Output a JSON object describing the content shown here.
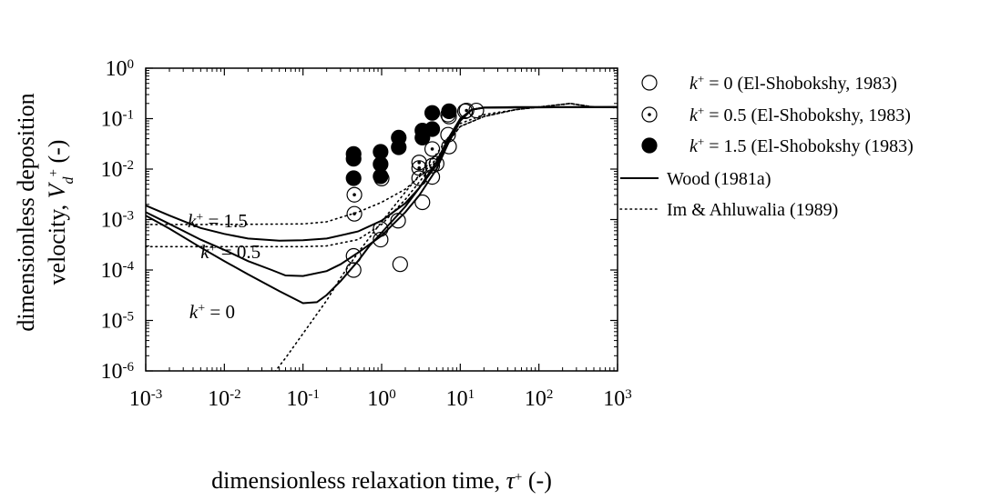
{
  "chart_data": {
    "type": "scatter",
    "xscale": "log",
    "yscale": "log",
    "xlim": [
      0.001,
      1000
    ],
    "ylim": [
      1e-06,
      1
    ],
    "grid": false,
    "legend_position": "right",
    "x_ticks": [
      {
        "base": "10",
        "exp": "-3",
        "value": 0.001
      },
      {
        "base": "10",
        "exp": "-2",
        "value": 0.01
      },
      {
        "base": "10",
        "exp": "-1",
        "value": 0.1
      },
      {
        "base": "10",
        "exp": "0",
        "value": 1
      },
      {
        "base": "10",
        "exp": "1",
        "value": 10
      },
      {
        "base": "10",
        "exp": "2",
        "value": 100
      },
      {
        "base": "10",
        "exp": "3",
        "value": 1000
      }
    ],
    "y_ticks": [
      {
        "base": "10",
        "exp": "-6",
        "value": 1e-06
      },
      {
        "base": "10",
        "exp": "-5",
        "value": 1e-05
      },
      {
        "base": "10",
        "exp": "-4",
        "value": 0.0001
      },
      {
        "base": "10",
        "exp": "-3",
        "value": 0.001
      },
      {
        "base": "10",
        "exp": "-2",
        "value": 0.01
      },
      {
        "base": "10",
        "exp": "-1",
        "value": 0.1
      },
      {
        "base": "10",
        "exp": "0",
        "value": 1
      }
    ],
    "xlabel": {
      "main": "dimensionless relaxation time, ",
      "symbol": "τ",
      "sup": "+",
      "unit": " (-)"
    },
    "ylabel": {
      "line1": "dimensionless deposition",
      "line2_main": "velocity, ",
      "symbol": "V",
      "sub": "d",
      "sup": "+",
      "unit": " (-)"
    },
    "series": [
      {
        "name": "k+ = 0 (El-Shobokshy, 1983)",
        "legend": {
          "symbol": "k",
          "sup": "+",
          "rest": " = 0 (El-Shobokshy, 1983)"
        },
        "marker": "open-circle",
        "points": [
          [
            0.44,
            0.0001
          ],
          [
            0.44,
            0.00019
          ],
          [
            0.97,
            0.0004
          ],
          [
            0.97,
            0.00065
          ],
          [
            1.62,
            0.00095
          ],
          [
            1.72,
            0.00013
          ],
          [
            3.3,
            0.0022
          ],
          [
            3.0,
            0.0066
          ],
          [
            4.4,
            0.007
          ],
          [
            4.4,
            0.0117
          ],
          [
            5.0,
            0.0128
          ],
          [
            7.2,
            0.028
          ],
          [
            7.0,
            0.048
          ],
          [
            7.2,
            0.11
          ],
          [
            11.5,
            0.14
          ],
          [
            16,
            0.145
          ]
        ]
      },
      {
        "name": "k+ = 0.5 (El-Shobokshy, 1983)",
        "legend": {
          "symbol": "k",
          "sup": "+",
          "rest": " = 0.5 (El-Shobokshy, 1983)"
        },
        "marker": "dotted-circle",
        "points": [
          [
            0.45,
            0.0013
          ],
          [
            0.45,
            0.0031
          ],
          [
            1.0,
            0.0065
          ],
          [
            3.0,
            0.0105
          ],
          [
            3.0,
            0.0135
          ],
          [
            4.4,
            0.025
          ],
          [
            7.0,
            0.12
          ],
          [
            12,
            0.145
          ]
        ]
      },
      {
        "name": "k+ = 1.5 (El-Shobokshy (1983)",
        "legend": {
          "symbol": "k",
          "sup": "+",
          "rest": " = 1.5 (El-Shobokshy (1983)"
        },
        "marker": "filled-circle",
        "points": [
          [
            0.44,
            0.0066
          ],
          [
            0.44,
            0.016
          ],
          [
            0.44,
            0.02
          ],
          [
            0.97,
            0.0072
          ],
          [
            0.97,
            0.0125
          ],
          [
            0.97,
            0.022
          ],
          [
            1.65,
            0.027
          ],
          [
            1.65,
            0.042
          ],
          [
            3.3,
            0.042
          ],
          [
            3.3,
            0.058
          ],
          [
            4.4,
            0.062
          ],
          [
            4.4,
            0.13
          ],
          [
            7.2,
            0.14
          ]
        ]
      },
      {
        "name": "Wood (1981a)",
        "legend": {
          "rest": "Wood (1981a)"
        },
        "line": "solid",
        "curves": [
          {
            "label": "k+ = 0",
            "points": [
              [
                0.001,
                0.0012
              ],
              [
                0.002,
                0.00066
              ],
              [
                0.005,
                0.00028
              ],
              [
                0.01,
                0.00015
              ],
              [
                0.02,
                8.2e-05
              ],
              [
                0.05,
                3.8e-05
              ],
              [
                0.1,
                2.2e-05
              ],
              [
                0.15,
                2.3e-05
              ],
              [
                0.2,
                3.2e-05
              ],
              [
                0.3,
                6e-05
              ],
              [
                0.5,
                0.00015
              ],
              [
                0.7,
                0.0003
              ],
              [
                1,
                0.00055
              ],
              [
                1.5,
                0.0011
              ],
              [
                2,
                0.0018
              ],
              [
                3,
                0.0042
              ],
              [
                5,
                0.014
              ],
              [
                7,
                0.04
              ],
              [
                10,
                0.1
              ],
              [
                14,
                0.15
              ],
              [
                20,
                0.165
              ],
              [
                50,
                0.17
              ],
              [
                1000,
                0.17
              ]
            ]
          },
          {
            "label": "k+ = 0.5",
            "points": [
              [
                0.001,
                0.0014
              ],
              [
                0.002,
                0.00082
              ],
              [
                0.005,
                0.0004
              ],
              [
                0.01,
                0.00025
              ],
              [
                0.02,
                0.00015
              ],
              [
                0.04,
                0.0001
              ],
              [
                0.06,
                7.8e-05
              ],
              [
                0.1,
                7.6e-05
              ],
              [
                0.2,
                9.5e-05
              ],
              [
                0.3,
                0.00013
              ],
              [
                0.5,
                0.00022
              ],
              [
                1,
                0.00048
              ],
              [
                2,
                0.0014
              ],
              [
                3,
                0.003
              ],
              [
                5,
                0.01
              ],
              [
                7,
                0.032
              ],
              [
                10,
                0.09
              ],
              [
                14,
                0.15
              ],
              [
                20,
                0.165
              ],
              [
                1000,
                0.17
              ]
            ]
          },
          {
            "label": "k+ = 1.5",
            "points": [
              [
                0.001,
                0.0019
              ],
              [
                0.002,
                0.0012
              ],
              [
                0.005,
                0.00068
              ],
              [
                0.01,
                0.00052
              ],
              [
                0.02,
                0.00042
              ],
              [
                0.05,
                0.00038
              ],
              [
                0.1,
                0.00039
              ],
              [
                0.2,
                0.00042
              ],
              [
                0.5,
                0.00058
              ],
              [
                1,
                0.00095
              ],
              [
                2,
                0.0021
              ],
              [
                3,
                0.0042
              ],
              [
                5,
                0.012
              ],
              [
                7,
                0.035
              ],
              [
                10,
                0.095
              ],
              [
                14,
                0.15
              ],
              [
                20,
                0.165
              ],
              [
                1000,
                0.17
              ]
            ]
          }
        ]
      },
      {
        "name": "Im & Ahluwalia (1989)",
        "legend": {
          "rest": "Im & Ahluwalia (1989)"
        },
        "line": "dotted",
        "curves": [
          {
            "label": "k+ = 0",
            "points": [
              [
                0.04,
                8e-07
              ],
              [
                0.06,
                1.8e-06
              ],
              [
                0.1,
                5.5e-06
              ],
              [
                0.2,
                2.5e-05
              ],
              [
                0.3,
                7e-05
              ],
              [
                0.5,
                0.00022
              ],
              [
                1,
                0.0009
              ],
              [
                2,
                0.0035
              ],
              [
                3,
                0.0075
              ],
              [
                5,
                0.02
              ],
              [
                7,
                0.042
              ],
              [
                10,
                0.08
              ],
              [
                20,
                0.12
              ],
              [
                50,
                0.15
              ],
              [
                100,
                0.17
              ],
              [
                200,
                0.19
              ],
              [
                250,
                0.2
              ],
              [
                300,
                0.19
              ],
              [
                500,
                0.17
              ],
              [
                1000,
                0.165
              ]
            ]
          },
          {
            "label": "k+ = 0.5",
            "points": [
              [
                0.001,
                0.00029
              ],
              [
                0.01,
                0.00029
              ],
              [
                0.1,
                0.00029
              ],
              [
                0.2,
                0.0003
              ],
              [
                0.5,
                0.0004
              ],
              [
                1,
                0.0008
              ],
              [
                2,
                0.0025
              ],
              [
                3,
                0.0055
              ],
              [
                5,
                0.015
              ],
              [
                7,
                0.034
              ],
              [
                10,
                0.07
              ],
              [
                20,
                0.11
              ],
              [
                50,
                0.15
              ],
              [
                100,
                0.17
              ],
              [
                250,
                0.2
              ],
              [
                500,
                0.17
              ],
              [
                1000,
                0.165
              ]
            ]
          },
          {
            "label": "k+ = 1.5",
            "points": [
              [
                0.001,
                0.0008
              ],
              [
                0.01,
                0.0008
              ],
              [
                0.1,
                0.00082
              ],
              [
                0.2,
                0.0009
              ],
              [
                0.3,
                0.0011
              ],
              [
                0.5,
                0.0014
              ],
              [
                1,
                0.0022
              ],
              [
                2,
                0.004
              ],
              [
                3,
                0.007
              ],
              [
                5,
                0.016
              ],
              [
                7,
                0.035
              ],
              [
                10,
                0.07
              ],
              [
                20,
                0.11
              ],
              [
                50,
                0.15
              ],
              [
                100,
                0.17
              ],
              [
                250,
                0.2
              ],
              [
                500,
                0.17
              ],
              [
                1000,
                0.165
              ]
            ]
          }
        ]
      }
    ],
    "annotations": [
      {
        "symbol": "k",
        "sup": "+",
        "rest": " = 1.5",
        "anchor": [
          0.0082,
          0.0007
        ]
      },
      {
        "symbol": "k",
        "sup": "+",
        "rest": " = 0.5",
        "anchor": [
          0.012,
          0.00017
        ]
      },
      {
        "symbol": "k",
        "sup": "+",
        "rest": " = 0",
        "anchor": [
          0.007,
          1.12e-05
        ]
      }
    ]
  }
}
